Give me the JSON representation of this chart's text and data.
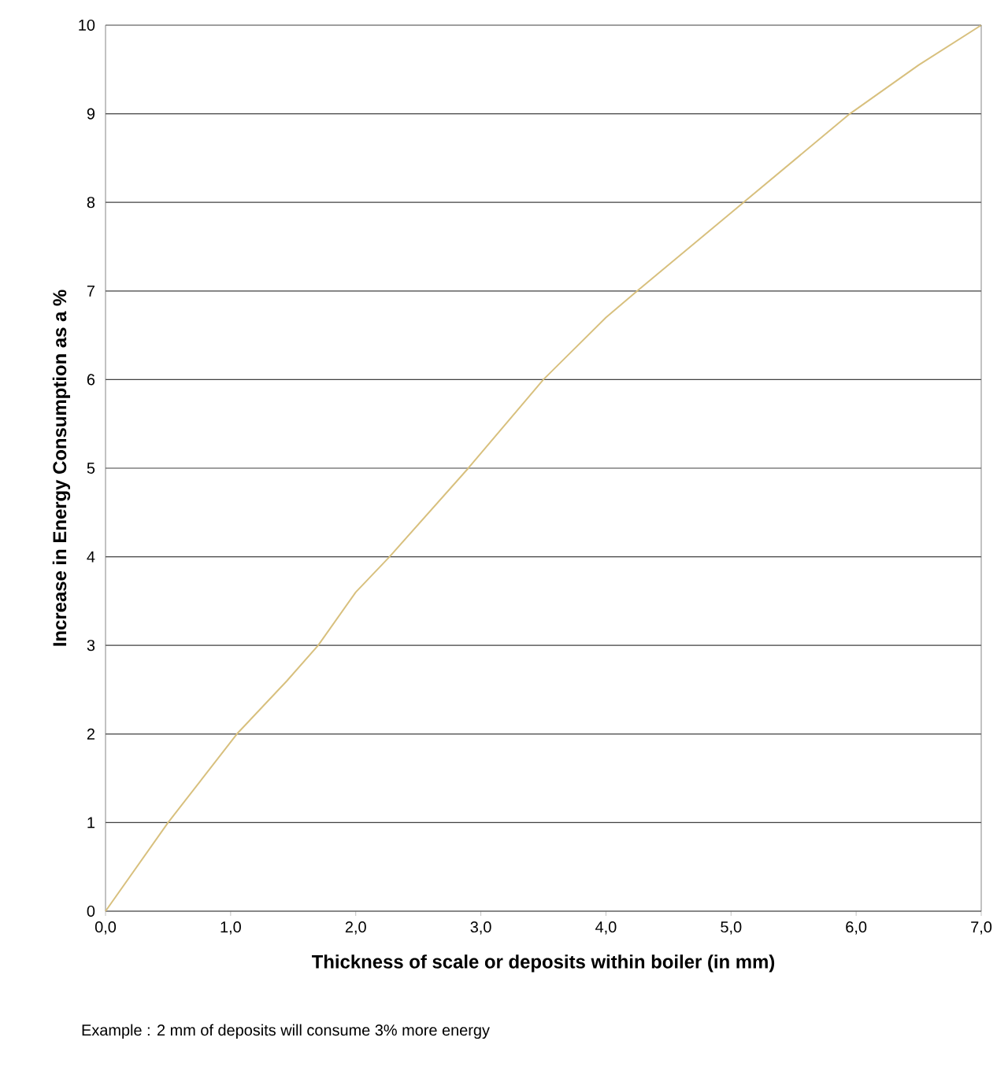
{
  "chart_data": {
    "type": "line",
    "xlabel": "Thickness of scale or deposits within boiler (in mm)",
    "ylabel": "Increase in Energy Consumption as a %",
    "annotations": [
      "Example : 2 mm of deposits will consume 3% more energy"
    ],
    "series": [
      {
        "color": "#d8c07e",
        "x": [
          0,
          0.5,
          1.05,
          1.45,
          1.7,
          2.0,
          2.27,
          2.9,
          3.5,
          4.0,
          4.25,
          5.1,
          5.95,
          6.5,
          7.0
        ],
        "values": [
          0,
          1,
          2,
          2.6,
          3,
          3.6,
          4,
          5,
          6,
          6.7,
          7,
          8,
          9,
          9.55,
          10
        ]
      }
    ],
    "xlim": [
      0,
      7
    ],
    "ylim": [
      0,
      10
    ],
    "xticks": [
      {
        "value": 0,
        "label": "0,0"
      },
      {
        "value": 1,
        "label": "1,0"
      },
      {
        "value": 2,
        "label": "2,0"
      },
      {
        "value": 3,
        "label": "3,0"
      },
      {
        "value": 4,
        "label": "4,0"
      },
      {
        "value": 5,
        "label": "5,0"
      },
      {
        "value": 6,
        "label": "6,0"
      },
      {
        "value": 7,
        "label": "7,0"
      }
    ],
    "yticks": [
      0,
      1,
      2,
      3,
      4,
      5,
      6,
      7,
      8,
      9,
      10
    ],
    "grid": "y",
    "marker": "none",
    "line_style": "solid"
  }
}
